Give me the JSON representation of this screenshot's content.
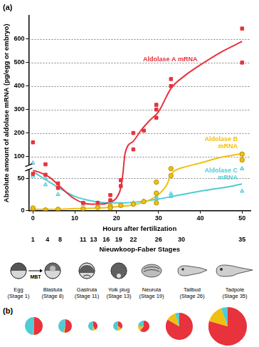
{
  "chart_data": [
    {
      "type": "line",
      "panel": "(a)",
      "xlabel": "Hours after fertilization",
      "ylabel": "Absolute amount of aldolase mRNA (pg/egg or embryo)",
      "x2label": "Nieuwkoop-Faber Stages",
      "xlim": [
        -1,
        52
      ],
      "xticks": [
        0,
        10,
        20,
        30,
        40,
        50
      ],
      "x2ticks": [
        {
          "value": 0,
          "label": "1"
        },
        {
          "value": 3.5,
          "label": "4"
        },
        {
          "value": 6.5,
          "label": "8"
        },
        {
          "value": 12,
          "label": "11"
        },
        {
          "value": 14.5,
          "label": "13"
        },
        {
          "value": 17.5,
          "label": "16"
        },
        {
          "value": 20.5,
          "label": "19"
        },
        {
          "value": 24,
          "label": "22"
        },
        {
          "value": 30,
          "label": "26"
        },
        {
          "value": 35.5,
          "label": "30"
        },
        {
          "value": 50,
          "label": "35"
        }
      ],
      "ylim": [
        0,
        700
      ],
      "yticks": [
        0,
        50,
        100,
        200,
        300,
        400,
        500,
        600
      ],
      "grid": true,
      "series": [
        {
          "name": "Aldolase A mRNA",
          "color": "#e8323c",
          "marker": "square",
          "x": [
            0,
            0,
            3,
            3,
            6,
            6,
            12,
            15.5,
            18.5,
            18.5,
            21,
            21,
            24,
            24,
            26.5,
            29.5,
            29.5,
            29.5,
            33,
            33,
            50,
            50
          ],
          "values": [
            160,
            60,
            82,
            58,
            42,
            35,
            12,
            12,
            16,
            24,
            38,
            47,
            200,
            130,
            210,
            300,
            265,
            320,
            400,
            430,
            645,
            500
          ],
          "curve_x": [
            0,
            2,
            4,
            6,
            8,
            10,
            12,
            14,
            16,
            18,
            20,
            21,
            21.5,
            22,
            24,
            26,
            28,
            30,
            33,
            36,
            40,
            45,
            50
          ],
          "curve_values": [
            68,
            62,
            52,
            40,
            28,
            18,
            12,
            10,
            10,
            12,
            20,
            35,
            60,
            110,
            165,
            215,
            255,
            290,
            390,
            440,
            490,
            545,
            590
          ]
        },
        {
          "name": "Aldolase B mRNA",
          "color": "#f0c010",
          "marker": "circle",
          "x": [
            0,
            0,
            3,
            6,
            12,
            15.5,
            18.5,
            18.5,
            21,
            24,
            26.5,
            29.5,
            29.5,
            29.5,
            33,
            33,
            50,
            50
          ],
          "values": [
            2,
            4,
            1,
            2,
            3,
            5,
            7,
            4,
            8,
            10,
            14,
            44,
            27,
            12,
            56,
            72,
            92,
            110
          ],
          "curve_x": [
            0,
            5,
            10,
            15,
            20,
            24,
            27,
            30,
            32,
            33,
            34,
            36,
            40,
            45,
            50
          ],
          "curve_values": [
            2,
            2,
            3,
            4,
            6,
            9,
            14,
            25,
            40,
            58,
            68,
            75,
            85,
            98,
            112
          ]
        },
        {
          "name": "Aldolase C mRNA",
          "color": "#4fcbd3",
          "marker": "triangle",
          "x": [
            0,
            0,
            3,
            3,
            6,
            6,
            12,
            15.5,
            18.5,
            18.5,
            21,
            24,
            26.5,
            29.5,
            29.5,
            33,
            33,
            50,
            50
          ],
          "values": [
            85,
            55,
            50,
            40,
            36,
            25,
            10,
            12,
            14,
            9,
            8,
            12,
            15,
            18,
            22,
            22,
            26,
            30,
            72
          ],
          "curve_x": [
            0,
            3,
            6,
            10,
            14,
            18,
            22,
            26,
            30,
            35,
            40,
            45,
            50
          ],
          "curve_values": [
            65,
            48,
            36,
            22,
            15,
            12,
            12,
            14,
            18,
            24,
            30,
            35,
            41
          ]
        }
      ]
    },
    {
      "type": "pie",
      "panel": "(b)",
      "series": [
        {
          "color": "#e8323c",
          "values": [
            68,
            40,
            12,
            10,
            30,
            290,
            590
          ]
        },
        {
          "color": "#f0c010",
          "values": [
            2,
            2,
            3,
            4,
            7,
            40,
            112
          ]
        },
        {
          "color": "#4fcbd3",
          "values": [
            65,
            36,
            14,
            14,
            12,
            18,
            41
          ]
        }
      ]
    }
  ],
  "stages_strip": {
    "transition": "MBT",
    "items": [
      "Egg (Stage 1)",
      "Blastula (Stage 8)",
      "Gastrula (Stage 11)",
      "Yolk plug (Stage 13)",
      "Neurula (Stage 19)",
      "Tailbud (Stage 26)",
      "Tadpole (Stage 35)"
    ]
  }
}
